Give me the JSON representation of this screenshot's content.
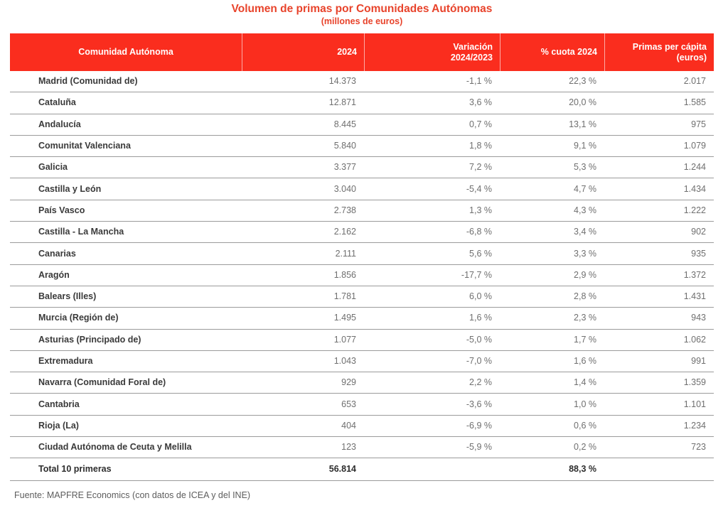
{
  "title": "Volumen de primas por Comunidades Autónomas",
  "subtitle": "(millones de euros)",
  "footer": "Fuente: MAPFRE Economics (con datos de ICEA y del INE)",
  "colors": {
    "header_bg": "#FA2D1E",
    "title_text": "#E8432B",
    "row_line": "#9B9B9B",
    "name_text": "#3A3A3A",
    "value_text": "#6F6F6F"
  },
  "table": {
    "header_labels": [
      "Comunidad Autónoma",
      "2024",
      "Variación\n2024/2023",
      "% cuota 2024",
      "Primas per cápita\n(euros)"
    ]
  },
  "chart_data": {
    "type": "table",
    "title": "Volumen de primas por Comunidades Autónomas",
    "subtitle": "(millones de euros)",
    "units": "millones de euros",
    "columns": [
      "Comunidad Autónoma",
      "2024",
      "Variación 2024/2023",
      "% cuota 2024",
      "Primas per cápita (euros)"
    ],
    "rows": [
      [
        "Madrid (Comunidad de)",
        "14.373",
        "-1,1 %",
        "22,3 %",
        "2.017"
      ],
      [
        "Cataluña",
        "12.871",
        "3,6 %",
        "20,0 %",
        "1.585"
      ],
      [
        "Andalucía",
        "8.445",
        "0,7 %",
        "13,1 %",
        "975"
      ],
      [
        "Comunitat Valenciana",
        "5.840",
        "1,8 %",
        "9,1 %",
        "1.079"
      ],
      [
        "Galicia",
        "3.377",
        "7,2 %",
        "5,3 %",
        "1.244"
      ],
      [
        "Castilla y León",
        "3.040",
        "-5,4 %",
        "4,7 %",
        "1.434"
      ],
      [
        "País Vasco",
        "2.738",
        "1,3 %",
        "4,3 %",
        "1.222"
      ],
      [
        "Castilla - La Mancha",
        "2.162",
        "-6,8 %",
        "3,4 %",
        "902"
      ],
      [
        "Canarias",
        "2.111",
        "5,6 %",
        "3,3 %",
        "935"
      ],
      [
        "Aragón",
        "1.856",
        "-17,7 %",
        "2,9 %",
        "1.372"
      ],
      [
        "Balears (Illes)",
        "1.781",
        "6,0 %",
        "2,8 %",
        "1.431"
      ],
      [
        "Murcia (Región de)",
        "1.495",
        "1,6 %",
        "2,3 %",
        "943"
      ],
      [
        "Asturias (Principado de)",
        "1.077",
        "-5,0 %",
        "1,7 %",
        "1.062"
      ],
      [
        "Extremadura",
        "1.043",
        "-7,0 %",
        "1,6 %",
        "991"
      ],
      [
        "Navarra (Comunidad Foral de)",
        "929",
        "2,2 %",
        "1,4 %",
        "1.359"
      ],
      [
        "Cantabria",
        "653",
        "-3,6 %",
        "1,0 %",
        "1.101"
      ],
      [
        "Rioja (La)",
        "404",
        "-6,9 %",
        "0,6 %",
        "1.234"
      ],
      [
        "Ciudad Autónoma de Ceuta y Melilla",
        "123",
        "-5,9 %",
        "0,2 %",
        "723"
      ]
    ],
    "total_row": [
      "Total 10 primeras",
      "56.814",
      "",
      "88,3 %",
      ""
    ],
    "source": "Fuente: MAPFRE Economics (con datos de ICEA y del INE)"
  }
}
